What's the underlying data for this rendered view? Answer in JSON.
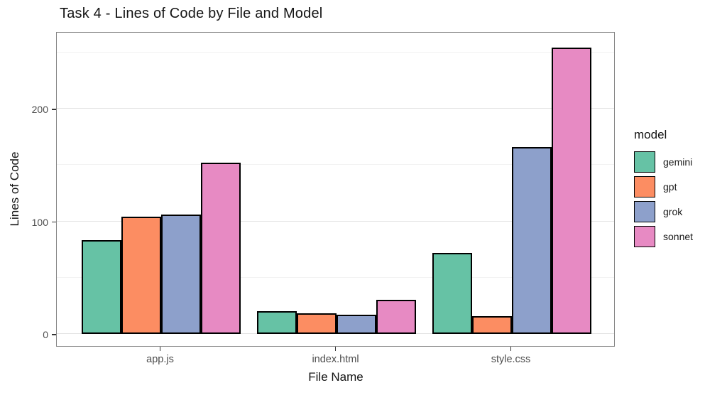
{
  "chart_data": {
    "type": "bar",
    "title": "Task 4 - Lines of Code by File and Model",
    "xlabel": "File Name",
    "ylabel": "Lines of Code",
    "categories": [
      "app.js",
      "index.html",
      "style.css"
    ],
    "series": [
      {
        "name": "gemini",
        "color": "#66C2A5",
        "values": [
          83,
          20,
          72
        ]
      },
      {
        "name": "gpt",
        "color": "#FC8D62",
        "values": [
          104,
          18,
          16
        ]
      },
      {
        "name": "grok",
        "color": "#8DA0CB",
        "values": [
          106,
          17,
          166
        ]
      },
      {
        "name": "sonnet",
        "color": "#E78AC3",
        "values": [
          152,
          30,
          254
        ]
      }
    ],
    "y_ticks": [
      0,
      100,
      200
    ],
    "y_minor_ticks": [
      50,
      150,
      250
    ],
    "ylim": [
      0,
      268
    ],
    "grid": true,
    "bar_outline_color": "#000000",
    "legend": {
      "title": "model",
      "position": "right",
      "entries": [
        "gemini",
        "gpt",
        "grok",
        "sonnet"
      ]
    }
  }
}
